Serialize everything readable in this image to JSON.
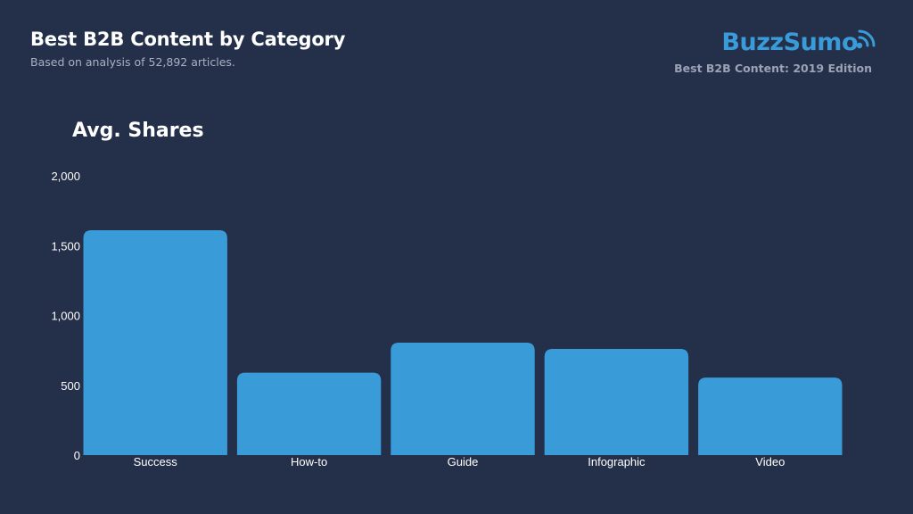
{
  "header": {
    "title": "Best B2B Content by Category",
    "subtitle": "Based on analysis of 52,892 articles."
  },
  "brand": {
    "name": "BuzzSumo",
    "edition": "Best B2B Content: 2019 Edition",
    "icon": "wifi-signal-icon",
    "color": "#3a9bd9"
  },
  "colors": {
    "background": "#242f49",
    "bar": "#3a9bd9"
  },
  "chart_data": {
    "type": "bar",
    "title": "Avg. Shares",
    "xlabel": "",
    "ylabel": "",
    "categories": [
      "Success",
      "How-to",
      "Guide",
      "Infographic",
      "Video"
    ],
    "values": [
      1610,
      590,
      805,
      760,
      555
    ],
    "ylim": [
      0,
      2000
    ],
    "yticks": [
      0,
      500,
      1000,
      1500,
      2000
    ],
    "ytick_labels": [
      "0",
      "500",
      "1,000",
      "1,500",
      "2,000"
    ],
    "grid": false,
    "legend": "none"
  }
}
